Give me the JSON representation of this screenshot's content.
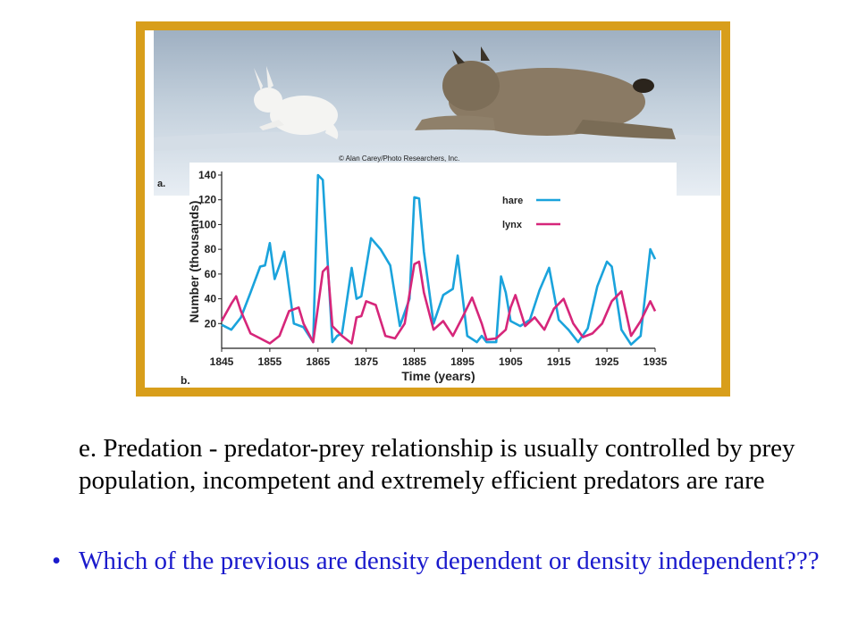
{
  "figure": {
    "photo_credit": "© Alan Carey/Photo Researchers, Inc.",
    "panel_a_label": "a.",
    "panel_b_label": "b.",
    "frame_color": "#d89e1b"
  },
  "chart_data": {
    "type": "line",
    "xlabel": "Time (years)",
    "ylabel": "Number (thousands)",
    "xlim": [
      1845,
      1935
    ],
    "ylim": [
      0,
      140
    ],
    "xticks": [
      1845,
      1855,
      1865,
      1875,
      1885,
      1895,
      1905,
      1915,
      1925,
      1935
    ],
    "yticks": [
      20,
      40,
      60,
      80,
      100,
      120,
      140
    ],
    "legend_position": "top-right",
    "series": [
      {
        "name": "hare",
        "color": "#1aa3dc",
        "x": [
          1845,
          1847,
          1849,
          1851,
          1853,
          1854,
          1855,
          1856,
          1858,
          1860,
          1862,
          1864,
          1865,
          1866,
          1868,
          1869,
          1870,
          1872,
          1873,
          1874,
          1876,
          1878,
          1880,
          1882,
          1884,
          1885,
          1886,
          1887,
          1889,
          1891,
          1893,
          1894,
          1896,
          1898,
          1899,
          1900,
          1902,
          1903,
          1904,
          1905,
          1907,
          1909,
          1911,
          1913,
          1915,
          1917,
          1919,
          1921,
          1923,
          1925,
          1926,
          1928,
          1930,
          1932,
          1934,
          1935
        ],
        "y": [
          19,
          15,
          25,
          45,
          66,
          67,
          85,
          56,
          78,
          20,
          17,
          5,
          140,
          136,
          5,
          10,
          12,
          65,
          40,
          42,
          89,
          80,
          67,
          18,
          40,
          122,
          121,
          78,
          20,
          43,
          48,
          75,
          10,
          5,
          10,
          5,
          5,
          58,
          45,
          22,
          18,
          23,
          47,
          65,
          23,
          15,
          5,
          16,
          50,
          70,
          66,
          15,
          3,
          10,
          80,
          72
        ]
      },
      {
        "name": "lynx",
        "color": "#d6267a",
        "x": [
          1845,
          1847,
          1848,
          1849,
          1851,
          1853,
          1855,
          1857,
          1859,
          1861,
          1862,
          1864,
          1866,
          1867,
          1868,
          1870,
          1872,
          1873,
          1874,
          1875,
          1877,
          1879,
          1881,
          1883,
          1885,
          1886,
          1887,
          1889,
          1891,
          1893,
          1895,
          1897,
          1899,
          1900,
          1902,
          1904,
          1905,
          1906,
          1908,
          1910,
          1912,
          1914,
          1916,
          1918,
          1920,
          1922,
          1924,
          1926,
          1928,
          1930,
          1932,
          1934,
          1935
        ],
        "y": [
          22,
          36,
          42,
          30,
          12,
          8,
          4,
          10,
          30,
          33,
          20,
          5,
          62,
          66,
          18,
          10,
          4,
          25,
          26,
          38,
          35,
          10,
          8,
          20,
          68,
          70,
          45,
          15,
          22,
          10,
          25,
          41,
          20,
          7,
          8,
          15,
          33,
          43,
          18,
          25,
          15,
          32,
          40,
          20,
          9,
          12,
          20,
          38,
          46,
          10,
          22,
          38,
          30
        ]
      }
    ]
  },
  "text": {
    "paragraph": "e. Predation - predator-prey relationship is usually controlled by prey population, incompetent and extremely efficient predators are rare",
    "bullet_symbol": "•",
    "bullet": "Which of the previous are density dependent or density independent???"
  }
}
